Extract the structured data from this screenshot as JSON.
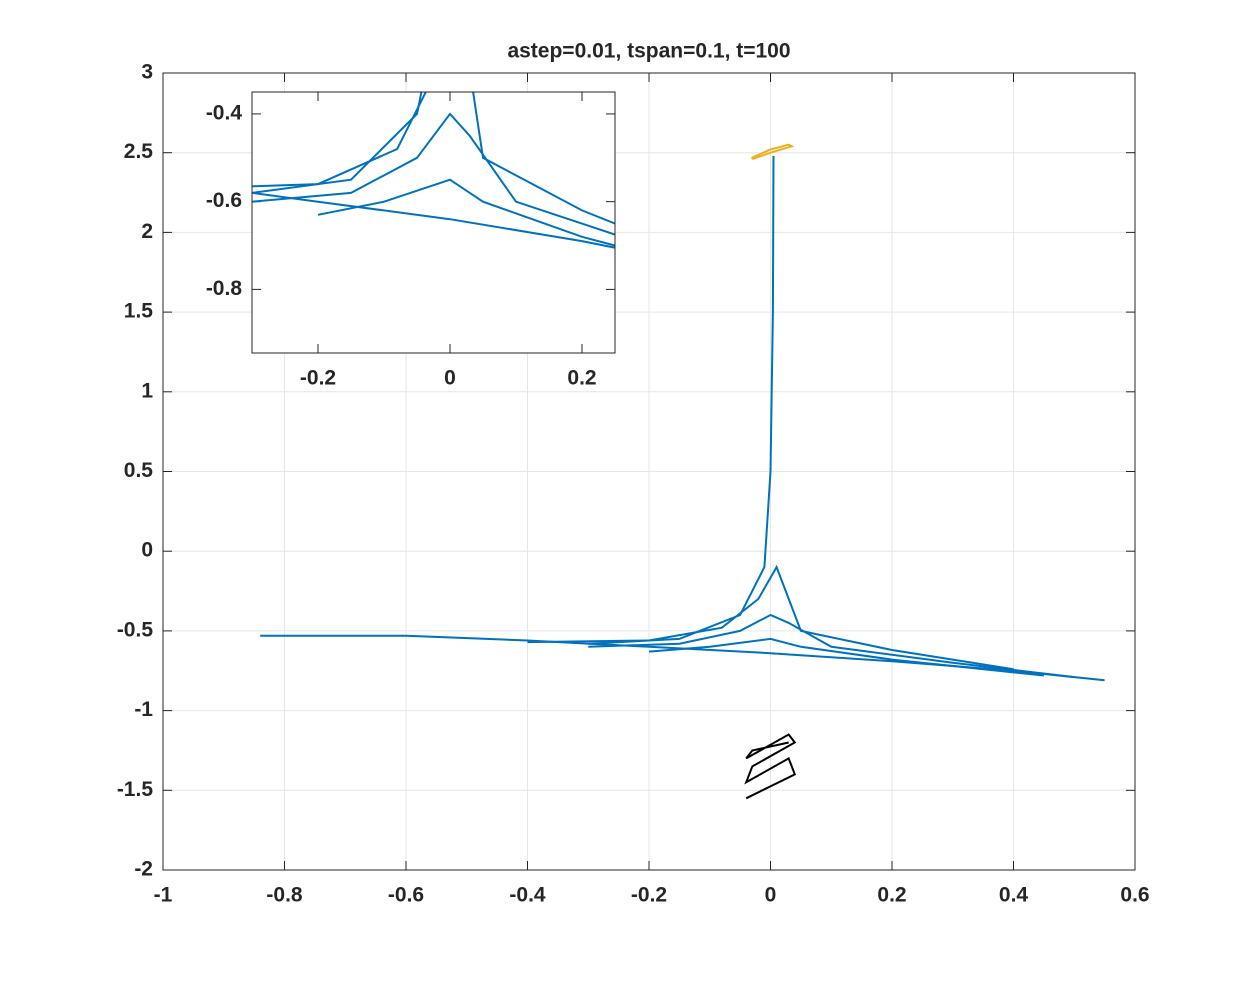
{
  "chart_data": {
    "type": "line",
    "title": "astep=0.01, tspan=0.1, t=100",
    "xlim": [
      -1,
      0.6
    ],
    "ylim": [
      -2,
      3
    ],
    "xticks": [
      -1,
      -0.8,
      -0.6,
      -0.4,
      -0.2,
      0,
      0.2,
      0.4,
      0.6
    ],
    "yticks": [
      -2,
      -1.5,
      -1,
      -0.5,
      0,
      0.5,
      1,
      1.5,
      2,
      2.5,
      3
    ],
    "grid": true,
    "series": [
      {
        "color": "#0072bd",
        "x": [
          -0.84,
          -0.6,
          -0.4,
          -0.2,
          0,
          0.2,
          0.4,
          0.55
        ],
        "values": [
          -0.53,
          -0.53,
          -0.56,
          -0.6,
          -0.64,
          -0.69,
          -0.75,
          -0.81
        ]
      },
      {
        "color": "#0072bd",
        "x": [
          -0.3,
          -0.15,
          -0.05,
          -0.01,
          0,
          0.004,
          0.005
        ],
        "values": [
          -0.58,
          -0.55,
          -0.4,
          -0.1,
          0.5,
          1.5,
          2.48
        ]
      },
      {
        "color": "#0072bd",
        "x": [
          -0.4,
          -0.2,
          -0.08,
          -0.02,
          0.01,
          0.05,
          0.2,
          0.4
        ],
        "values": [
          -0.57,
          -0.56,
          -0.48,
          -0.3,
          -0.1,
          -0.5,
          -0.62,
          -0.74
        ]
      },
      {
        "color": "#0072bd",
        "x": [
          -0.3,
          -0.15,
          -0.05,
          0,
          0.03,
          0.1,
          0.3,
          0.5
        ],
        "values": [
          -0.6,
          -0.58,
          -0.5,
          -0.4,
          -0.45,
          -0.6,
          -0.7,
          -0.79
        ]
      },
      {
        "color": "#0072bd",
        "x": [
          -0.2,
          -0.1,
          0,
          0.05,
          0.2,
          0.45
        ],
        "values": [
          -0.63,
          -0.6,
          -0.55,
          -0.6,
          -0.68,
          -0.78
        ]
      },
      {
        "color": "#edb120",
        "x": [
          -0.03,
          0,
          0.035,
          0.03,
          0,
          -0.03,
          -0.03
        ],
        "values": [
          2.46,
          2.5,
          2.54,
          2.55,
          2.52,
          2.47,
          2.46
        ]
      },
      {
        "color": "#000000",
        "x": [
          -0.04,
          0.04,
          0.03,
          -0.04,
          -0.03,
          0.04,
          0.03,
          -0.04,
          -0.03,
          0.03
        ],
        "values": [
          -1.55,
          -1.4,
          -1.3,
          -1.45,
          -1.35,
          -1.2,
          -1.15,
          -1.3,
          -1.25,
          -1.2
        ]
      }
    ],
    "inset": {
      "xlim": [
        -0.3,
        0.25
      ],
      "ylim": [
        -0.945,
        -0.35
      ],
      "xticks": [
        -0.2,
        0,
        0.2
      ],
      "yticks": [
        -0.4,
        -0.6,
        -0.8
      ]
    }
  }
}
